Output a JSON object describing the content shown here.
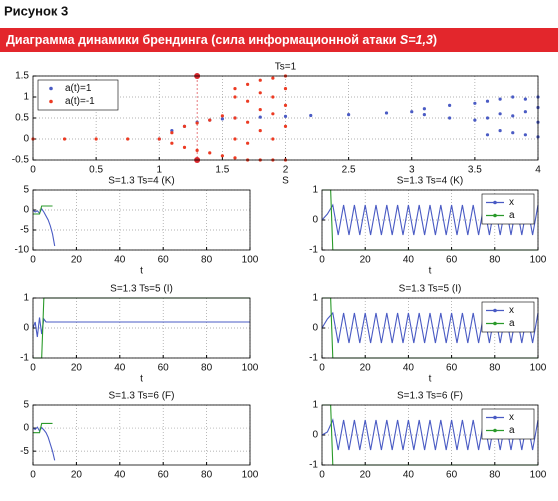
{
  "figure_label": "Рисунок 3",
  "banner_text": "Диаграмма динамики брендинга (сила информационной атаки ",
  "banner_emphasis": "S=1,3",
  "banner_end": ")",
  "chart_data": [
    {
      "type": "scatter",
      "title": "Ts=1",
      "xlabel": "S",
      "xlim": [
        0,
        4
      ],
      "ylim": [
        -0.5,
        1.5
      ],
      "xticks": [
        0,
        0.5,
        1,
        1.5,
        2,
        2.5,
        3,
        3.5,
        4
      ],
      "yticks": [
        -0.5,
        0,
        0.5,
        1,
        1.5
      ],
      "grid": true,
      "legend": "upper left",
      "marker_x": 1.3,
      "marker_color": "#d8262b",
      "series": [
        {
          "name": "a(t)=1",
          "color": "#4a5bc4",
          "x": [
            1,
            1.1,
            1.2,
            1.3,
            1.4,
            1.5,
            1.6,
            1.8,
            2,
            2.2,
            2.5,
            2.8,
            3,
            3.1,
            3.1,
            3.3,
            3.3,
            3.5,
            3.5,
            3.6,
            3.6,
            3.6,
            3.7,
            3.7,
            3.7,
            3.8,
            3.8,
            3.8,
            3.9,
            3.9,
            3.9,
            4,
            4,
            4,
            4
          ],
          "y": [
            0,
            0.2,
            0.3,
            0.4,
            0.45,
            0.48,
            0.5,
            0.52,
            0.54,
            0.56,
            0.58,
            0.62,
            0.65,
            0.58,
            0.72,
            0.5,
            0.8,
            0.45,
            0.85,
            0.1,
            0.5,
            0.9,
            0.2,
            0.6,
            0.95,
            0.15,
            0.55,
            1.0,
            0.1,
            0.65,
            0.95,
            0.05,
            0.4,
            0.75,
            1.0
          ]
        },
        {
          "name": "a(t)=-1",
          "color": "#ec3a22",
          "x": [
            0,
            0.25,
            0.5,
            0.75,
            1,
            1.1,
            1.1,
            1.2,
            1.2,
            1.3,
            1.3,
            1.4,
            1.4,
            1.5,
            1.5,
            1.6,
            1.6,
            1.6,
            1.6,
            1.6,
            1.7,
            1.7,
            1.7,
            1.7,
            1.7,
            1.8,
            1.8,
            1.8,
            1.8,
            1.8,
            1.9,
            1.9,
            1.9,
            1.9,
            1.9,
            2,
            2,
            2,
            2,
            2
          ],
          "y": [
            0,
            0,
            0,
            0,
            0,
            0.15,
            -0.1,
            0.3,
            -0.2,
            0.38,
            -0.27,
            0.45,
            -0.33,
            0.55,
            -0.4,
            -0.45,
            0,
            0.5,
            1.0,
            1.2,
            -0.5,
            -0.1,
            0.4,
            0.9,
            1.3,
            -0.5,
            0.2,
            0.7,
            1.1,
            1.4,
            -0.5,
            0,
            0.6,
            1,
            1.45,
            -0.5,
            0.3,
            0.8,
            1.2,
            1.5
          ]
        }
      ]
    },
    {
      "type": "line",
      "title": "S=1.3 Ts=4 (K)",
      "xlabel": "t",
      "xlim": [
        0,
        100
      ],
      "ylim": [
        -10,
        5
      ],
      "xticks": [
        0,
        20,
        40,
        60,
        80,
        100
      ],
      "yticks": [
        -10,
        -5,
        0,
        5
      ],
      "grid": true,
      "series": [
        {
          "color": "#4a5bc4",
          "x": [
            0,
            1,
            2,
            3,
            4,
            5,
            6,
            7,
            8,
            9,
            10
          ],
          "y": [
            0,
            -0.5,
            -0.2,
            -0.8,
            0.3,
            -0.5,
            -1.5,
            -2.5,
            -4,
            -6,
            -9
          ]
        },
        {
          "color": "#2a9a2a",
          "x": [
            0,
            1,
            2,
            3,
            4,
            5,
            6,
            7,
            8,
            9
          ],
          "y": [
            -1,
            -1,
            -1,
            -1,
            1,
            1,
            1,
            1,
            1,
            1
          ]
        }
      ]
    },
    {
      "type": "line",
      "title": "S=1.3 Ts=4 (K)",
      "xlabel": "t",
      "xlim": [
        0,
        100
      ],
      "ylim": [
        -1,
        1
      ],
      "xticks": [
        0,
        20,
        40,
        60,
        80,
        100
      ],
      "yticks": [
        -1,
        0,
        1
      ],
      "grid": true,
      "legend": "upper right",
      "series": [
        {
          "name": "x",
          "color": "#4a5bc4",
          "x": [
            0,
            2.5,
            5,
            7.5,
            10,
            12.5,
            15,
            17.5,
            20,
            22.5,
            25,
            27.5,
            30,
            32.5,
            35,
            37.5,
            40,
            42.5,
            45,
            47.5,
            50,
            52.5,
            55,
            57.5,
            60,
            62.5,
            65,
            67.5,
            70,
            72.5,
            75,
            77.5,
            80,
            82.5,
            85,
            87.5,
            90,
            92.5,
            95,
            97.5,
            100
          ],
          "y": [
            0,
            0.2,
            0.5,
            -0.5,
            0.5,
            -0.5,
            0.5,
            -0.5,
            0.5,
            -0.5,
            0.5,
            -0.5,
            0.5,
            -0.5,
            0.5,
            -0.5,
            0.5,
            -0.5,
            0.5,
            -0.5,
            0.5,
            -0.5,
            0.5,
            -0.5,
            0.5,
            -0.5,
            0.5,
            -0.5,
            0.5,
            -0.5,
            0.5,
            -0.5,
            0.5,
            -0.5,
            0.5,
            -0.5,
            0.5,
            -0.5,
            0.5,
            -0.5,
            0.5
          ]
        },
        {
          "name": "a",
          "color": "#2a9a2a",
          "x": [
            0,
            4,
            5,
            100
          ],
          "y": [
            1,
            1,
            -1,
            -1
          ]
        }
      ]
    },
    {
      "type": "line",
      "title": "S=1.3 Ts=5 (I)",
      "xlabel": "t",
      "xlim": [
        0,
        100
      ],
      "ylim": [
        -1,
        1
      ],
      "xticks": [
        0,
        20,
        40,
        60,
        80,
        100
      ],
      "yticks": [
        -1,
        0,
        1
      ],
      "grid": true,
      "series": [
        {
          "color": "#4a5bc4",
          "x": [
            0,
            1,
            2,
            3,
            4,
            5,
            6,
            100
          ],
          "y": [
            0,
            0.2,
            -0.3,
            0.35,
            -0.2,
            0.3,
            0.2,
            0.2
          ]
        },
        {
          "color": "#2a9a2a",
          "x": [
            0,
            4,
            5,
            100
          ],
          "y": [
            -1,
            -1,
            1,
            1
          ]
        }
      ]
    },
    {
      "type": "line",
      "title": "S=1.3 Ts=5 (I)",
      "xlabel": "t",
      "xlim": [
        0,
        100
      ],
      "ylim": [
        -1,
        1
      ],
      "xticks": [
        0,
        20,
        40,
        60,
        80,
        100
      ],
      "yticks": [
        -1,
        0,
        1
      ],
      "grid": true,
      "legend": "upper right",
      "series": [
        {
          "name": "x",
          "color": "#4a5bc4",
          "x": [
            0,
            2.5,
            5,
            7.5,
            10,
            12.5,
            15,
            17.5,
            20,
            22.5,
            25,
            27.5,
            30,
            32.5,
            35,
            37.5,
            40,
            42.5,
            45,
            47.5,
            50,
            52.5,
            55,
            57.5,
            60,
            62.5,
            65,
            67.5,
            70,
            72.5,
            75,
            77.5,
            80,
            82.5,
            85,
            87.5,
            90,
            92.5,
            95,
            97.5,
            100
          ],
          "y": [
            0,
            0.3,
            0.5,
            -0.5,
            0.5,
            -0.5,
            0.5,
            -0.5,
            0.5,
            -0.5,
            0.5,
            -0.5,
            0.5,
            -0.5,
            0.5,
            -0.5,
            0.5,
            -0.5,
            0.5,
            -0.5,
            0.5,
            -0.5,
            0.5,
            -0.5,
            0.5,
            -0.5,
            0.5,
            -0.5,
            0.5,
            -0.5,
            0.5,
            -0.5,
            0.5,
            -0.5,
            0.5,
            -0.5,
            0.5,
            -0.5,
            0.5,
            -0.5,
            0.5
          ]
        },
        {
          "name": "a",
          "color": "#2a9a2a",
          "x": [
            0,
            4,
            5,
            100
          ],
          "y": [
            1,
            1,
            -1,
            -1
          ]
        }
      ]
    },
    {
      "type": "line",
      "title": "S=1.3 Ts=6 (F)",
      "xlim": [
        0,
        100
      ],
      "ylim": [
        -8,
        5
      ],
      "xticks": [
        0,
        20,
        40,
        60,
        80,
        100
      ],
      "yticks": [
        -5,
        0,
        5
      ],
      "grid": true,
      "series": [
        {
          "color": "#4a5bc4",
          "x": [
            0,
            1,
            2,
            3,
            4,
            5,
            6,
            7,
            8,
            9,
            10
          ],
          "y": [
            0,
            -0.3,
            0.2,
            -0.6,
            0.1,
            -0.4,
            -1,
            -2,
            -3.5,
            -5,
            -7
          ]
        },
        {
          "color": "#2a9a2a",
          "x": [
            0,
            1,
            2,
            3,
            4,
            5,
            6,
            7,
            8,
            9
          ],
          "y": [
            -1,
            -1,
            -1,
            -1,
            1,
            1,
            1,
            1,
            1,
            1
          ]
        }
      ]
    },
    {
      "type": "line",
      "title": "S=1.3 Ts=6 (F)",
      "xlim": [
        0,
        100
      ],
      "ylim": [
        -1,
        1
      ],
      "xticks": [
        0,
        20,
        40,
        60,
        80,
        100
      ],
      "yticks": [
        -1,
        0,
        1
      ],
      "grid": true,
      "legend": "upper right",
      "series": [
        {
          "name": "x",
          "color": "#4a5bc4",
          "x": [
            0,
            2.5,
            5,
            7.5,
            10,
            12.5,
            15,
            17.5,
            20,
            22.5,
            25,
            27.5,
            30,
            32.5,
            35,
            37.5,
            40,
            42.5,
            45,
            47.5,
            50,
            52.5,
            55,
            57.5,
            60,
            62.5,
            65,
            67.5,
            70,
            72.5,
            75,
            77.5,
            80,
            82.5,
            85,
            87.5,
            90,
            92.5,
            95,
            97.5,
            100
          ],
          "y": [
            0,
            0.1,
            0.5,
            -0.5,
            0.5,
            -0.5,
            0.5,
            -0.5,
            0.5,
            -0.5,
            0.5,
            -0.5,
            0.5,
            -0.5,
            0.5,
            -0.5,
            0.5,
            -0.5,
            0.5,
            -0.5,
            0.5,
            -0.5,
            0.5,
            -0.5,
            0.5,
            -0.5,
            0.5,
            -0.5,
            0.5,
            -0.5,
            0.5,
            -0.5,
            0.5,
            -0.5,
            0.5,
            -0.5,
            0.5,
            -0.5,
            0.5,
            -0.5,
            0.5
          ]
        },
        {
          "name": "a",
          "color": "#2a9a2a",
          "x": [
            0,
            4,
            5,
            100
          ],
          "y": [
            1,
            1,
            -1,
            -1
          ]
        }
      ]
    }
  ]
}
